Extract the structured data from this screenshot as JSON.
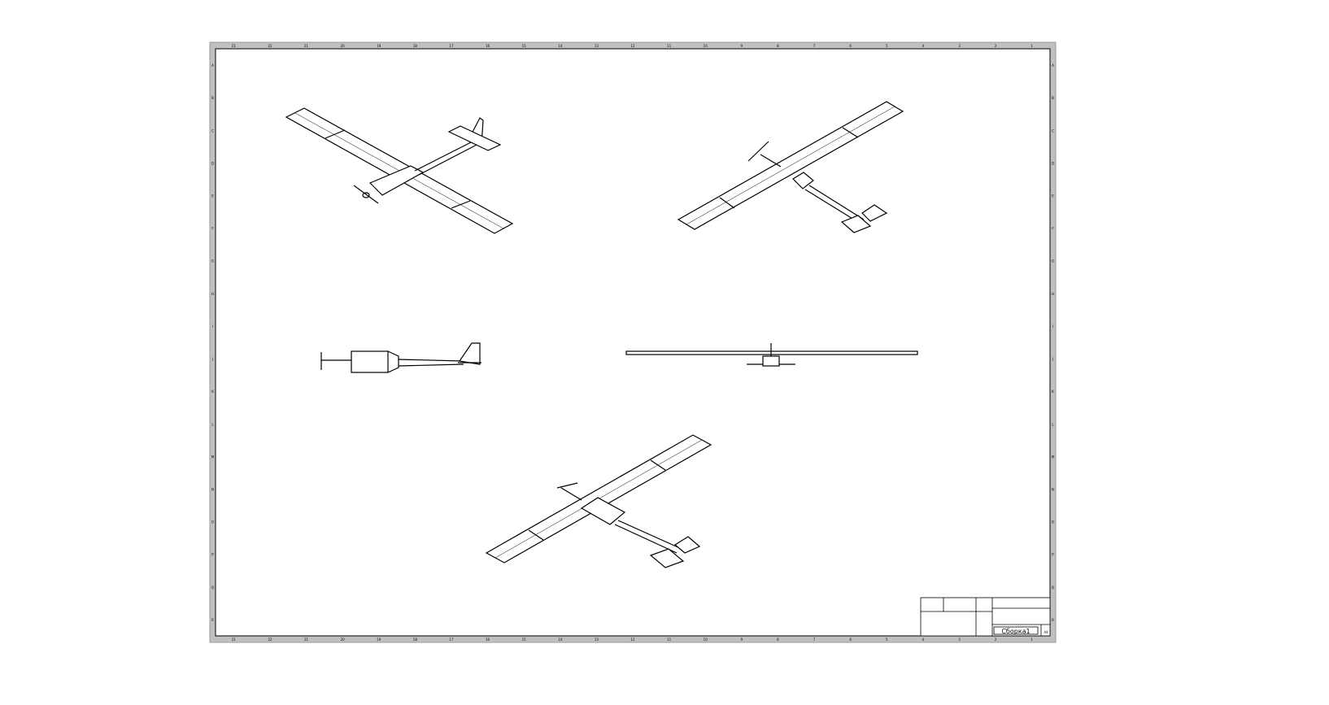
{
  "sheet": {
    "border_color": "#c0c0c0",
    "line_color": "#000000",
    "zone_numbers": [
      "21",
      "22",
      "21",
      "20",
      "19",
      "18",
      "17",
      "16",
      "15",
      "14",
      "13",
      "12",
      "11",
      "10",
      "9",
      "8",
      "7",
      "6",
      "5",
      "4",
      "3",
      "2",
      "1"
    ],
    "zone_letters": [
      "A",
      "B",
      "C",
      "D",
      "E",
      "F",
      "G",
      "H",
      "I",
      "J",
      "K",
      "L",
      "M",
      "N",
      "O",
      "P",
      "Q",
      "R"
    ]
  },
  "views": [
    {
      "name": "isometric-view-1"
    },
    {
      "name": "isometric-view-2"
    },
    {
      "name": "side-view"
    },
    {
      "name": "front-view"
    },
    {
      "name": "isometric-view-3"
    }
  ],
  "title_block": {
    "drawing_title": "Сборка1",
    "sheet_marker": "A4"
  }
}
